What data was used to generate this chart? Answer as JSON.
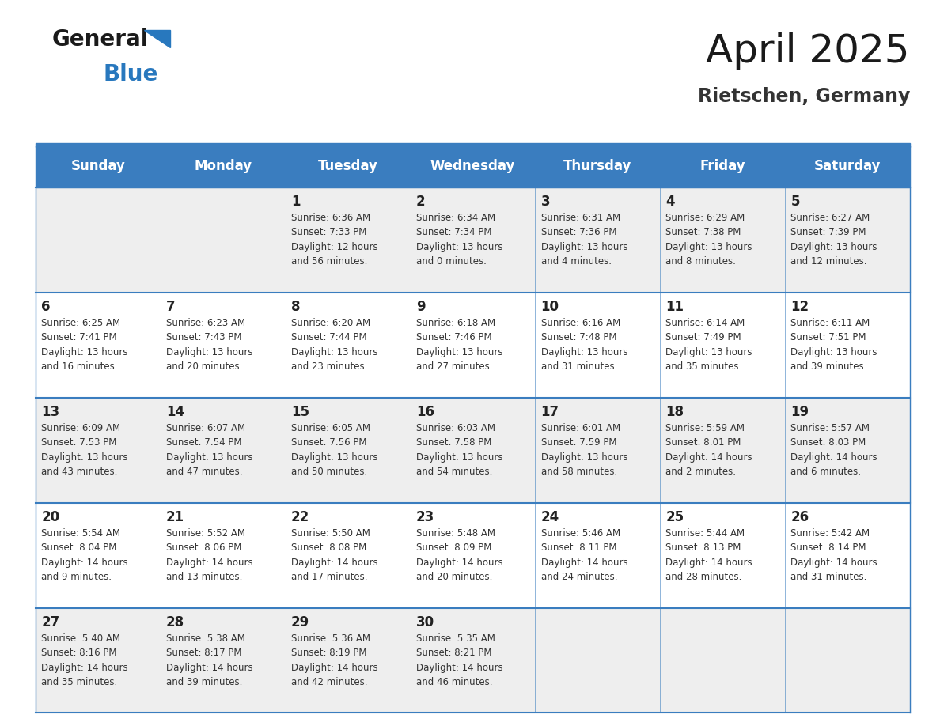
{
  "title": "April 2025",
  "subtitle": "Rietschen, Germany",
  "header_bg": "#3a7dbf",
  "header_text_color": "#ffffff",
  "row_bg": [
    "#eeeeee",
    "#ffffff",
    "#eeeeee",
    "#ffffff",
    "#eeeeee"
  ],
  "border_color": "#3a7dbf",
  "text_color": "#333333",
  "day_num_color": "#222222",
  "days_of_week": [
    "Sunday",
    "Monday",
    "Tuesday",
    "Wednesday",
    "Thursday",
    "Friday",
    "Saturday"
  ],
  "weeks": [
    [
      {
        "day": "",
        "info": ""
      },
      {
        "day": "",
        "info": ""
      },
      {
        "day": "1",
        "info": "Sunrise: 6:36 AM\nSunset: 7:33 PM\nDaylight: 12 hours\nand 56 minutes."
      },
      {
        "day": "2",
        "info": "Sunrise: 6:34 AM\nSunset: 7:34 PM\nDaylight: 13 hours\nand 0 minutes."
      },
      {
        "day": "3",
        "info": "Sunrise: 6:31 AM\nSunset: 7:36 PM\nDaylight: 13 hours\nand 4 minutes."
      },
      {
        "day": "4",
        "info": "Sunrise: 6:29 AM\nSunset: 7:38 PM\nDaylight: 13 hours\nand 8 minutes."
      },
      {
        "day": "5",
        "info": "Sunrise: 6:27 AM\nSunset: 7:39 PM\nDaylight: 13 hours\nand 12 minutes."
      }
    ],
    [
      {
        "day": "6",
        "info": "Sunrise: 6:25 AM\nSunset: 7:41 PM\nDaylight: 13 hours\nand 16 minutes."
      },
      {
        "day": "7",
        "info": "Sunrise: 6:23 AM\nSunset: 7:43 PM\nDaylight: 13 hours\nand 20 minutes."
      },
      {
        "day": "8",
        "info": "Sunrise: 6:20 AM\nSunset: 7:44 PM\nDaylight: 13 hours\nand 23 minutes."
      },
      {
        "day": "9",
        "info": "Sunrise: 6:18 AM\nSunset: 7:46 PM\nDaylight: 13 hours\nand 27 minutes."
      },
      {
        "day": "10",
        "info": "Sunrise: 6:16 AM\nSunset: 7:48 PM\nDaylight: 13 hours\nand 31 minutes."
      },
      {
        "day": "11",
        "info": "Sunrise: 6:14 AM\nSunset: 7:49 PM\nDaylight: 13 hours\nand 35 minutes."
      },
      {
        "day": "12",
        "info": "Sunrise: 6:11 AM\nSunset: 7:51 PM\nDaylight: 13 hours\nand 39 minutes."
      }
    ],
    [
      {
        "day": "13",
        "info": "Sunrise: 6:09 AM\nSunset: 7:53 PM\nDaylight: 13 hours\nand 43 minutes."
      },
      {
        "day": "14",
        "info": "Sunrise: 6:07 AM\nSunset: 7:54 PM\nDaylight: 13 hours\nand 47 minutes."
      },
      {
        "day": "15",
        "info": "Sunrise: 6:05 AM\nSunset: 7:56 PM\nDaylight: 13 hours\nand 50 minutes."
      },
      {
        "day": "16",
        "info": "Sunrise: 6:03 AM\nSunset: 7:58 PM\nDaylight: 13 hours\nand 54 minutes."
      },
      {
        "day": "17",
        "info": "Sunrise: 6:01 AM\nSunset: 7:59 PM\nDaylight: 13 hours\nand 58 minutes."
      },
      {
        "day": "18",
        "info": "Sunrise: 5:59 AM\nSunset: 8:01 PM\nDaylight: 14 hours\nand 2 minutes."
      },
      {
        "day": "19",
        "info": "Sunrise: 5:57 AM\nSunset: 8:03 PM\nDaylight: 14 hours\nand 6 minutes."
      }
    ],
    [
      {
        "day": "20",
        "info": "Sunrise: 5:54 AM\nSunset: 8:04 PM\nDaylight: 14 hours\nand 9 minutes."
      },
      {
        "day": "21",
        "info": "Sunrise: 5:52 AM\nSunset: 8:06 PM\nDaylight: 14 hours\nand 13 minutes."
      },
      {
        "day": "22",
        "info": "Sunrise: 5:50 AM\nSunset: 8:08 PM\nDaylight: 14 hours\nand 17 minutes."
      },
      {
        "day": "23",
        "info": "Sunrise: 5:48 AM\nSunset: 8:09 PM\nDaylight: 14 hours\nand 20 minutes."
      },
      {
        "day": "24",
        "info": "Sunrise: 5:46 AM\nSunset: 8:11 PM\nDaylight: 14 hours\nand 24 minutes."
      },
      {
        "day": "25",
        "info": "Sunrise: 5:44 AM\nSunset: 8:13 PM\nDaylight: 14 hours\nand 28 minutes."
      },
      {
        "day": "26",
        "info": "Sunrise: 5:42 AM\nSunset: 8:14 PM\nDaylight: 14 hours\nand 31 minutes."
      }
    ],
    [
      {
        "day": "27",
        "info": "Sunrise: 5:40 AM\nSunset: 8:16 PM\nDaylight: 14 hours\nand 35 minutes."
      },
      {
        "day": "28",
        "info": "Sunrise: 5:38 AM\nSunset: 8:17 PM\nDaylight: 14 hours\nand 39 minutes."
      },
      {
        "day": "29",
        "info": "Sunrise: 5:36 AM\nSunset: 8:19 PM\nDaylight: 14 hours\nand 42 minutes."
      },
      {
        "day": "30",
        "info": "Sunrise: 5:35 AM\nSunset: 8:21 PM\nDaylight: 14 hours\nand 46 minutes."
      },
      {
        "day": "",
        "info": ""
      },
      {
        "day": "",
        "info": ""
      },
      {
        "day": "",
        "info": ""
      }
    ]
  ],
  "logo_general_color": "#1a1a1a",
  "logo_blue_color": "#2878be",
  "logo_triangle_color": "#2878be",
  "title_color": "#1a1a1a",
  "subtitle_color": "#333333",
  "title_fontsize": 36,
  "subtitle_fontsize": 17,
  "header_fontsize": 12,
  "day_num_fontsize": 12,
  "info_fontsize": 8.5
}
